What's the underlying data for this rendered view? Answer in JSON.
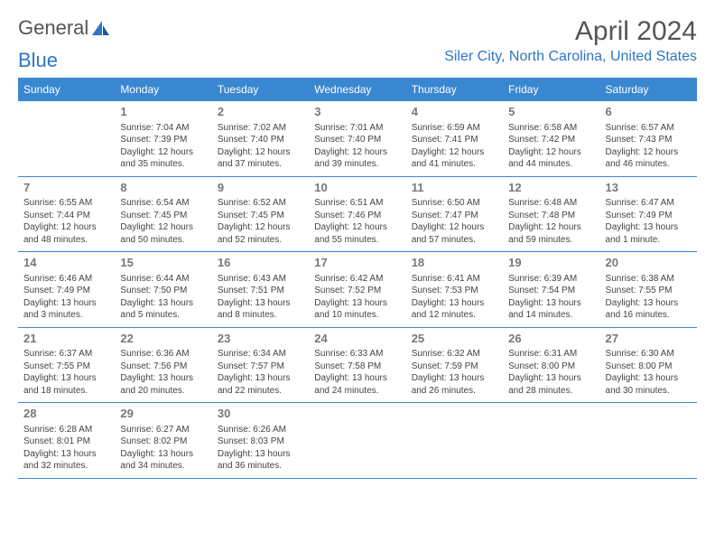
{
  "logo": {
    "part1": "General",
    "part2": "Blue"
  },
  "title": "April 2024",
  "location": "Siler City, North Carolina, United States",
  "day_headers": [
    "Sunday",
    "Monday",
    "Tuesday",
    "Wednesday",
    "Thursday",
    "Friday",
    "Saturday"
  ],
  "colors": {
    "header_bg": "#3a87d1",
    "header_text": "#ffffff",
    "accent": "#2e75c6",
    "text": "#444444",
    "daynum": "#777777"
  },
  "weeks": [
    [
      null,
      {
        "n": "1",
        "sr": "7:04 AM",
        "ss": "7:39 PM",
        "dl": "12 hours and 35 minutes."
      },
      {
        "n": "2",
        "sr": "7:02 AM",
        "ss": "7:40 PM",
        "dl": "12 hours and 37 minutes."
      },
      {
        "n": "3",
        "sr": "7:01 AM",
        "ss": "7:40 PM",
        "dl": "12 hours and 39 minutes."
      },
      {
        "n": "4",
        "sr": "6:59 AM",
        "ss": "7:41 PM",
        "dl": "12 hours and 41 minutes."
      },
      {
        "n": "5",
        "sr": "6:58 AM",
        "ss": "7:42 PM",
        "dl": "12 hours and 44 minutes."
      },
      {
        "n": "6",
        "sr": "6:57 AM",
        "ss": "7:43 PM",
        "dl": "12 hours and 46 minutes."
      }
    ],
    [
      {
        "n": "7",
        "sr": "6:55 AM",
        "ss": "7:44 PM",
        "dl": "12 hours and 48 minutes."
      },
      {
        "n": "8",
        "sr": "6:54 AM",
        "ss": "7:45 PM",
        "dl": "12 hours and 50 minutes."
      },
      {
        "n": "9",
        "sr": "6:52 AM",
        "ss": "7:45 PM",
        "dl": "12 hours and 52 minutes."
      },
      {
        "n": "10",
        "sr": "6:51 AM",
        "ss": "7:46 PM",
        "dl": "12 hours and 55 minutes."
      },
      {
        "n": "11",
        "sr": "6:50 AM",
        "ss": "7:47 PM",
        "dl": "12 hours and 57 minutes."
      },
      {
        "n": "12",
        "sr": "6:48 AM",
        "ss": "7:48 PM",
        "dl": "12 hours and 59 minutes."
      },
      {
        "n": "13",
        "sr": "6:47 AM",
        "ss": "7:49 PM",
        "dl": "13 hours and 1 minute."
      }
    ],
    [
      {
        "n": "14",
        "sr": "6:46 AM",
        "ss": "7:49 PM",
        "dl": "13 hours and 3 minutes."
      },
      {
        "n": "15",
        "sr": "6:44 AM",
        "ss": "7:50 PM",
        "dl": "13 hours and 5 minutes."
      },
      {
        "n": "16",
        "sr": "6:43 AM",
        "ss": "7:51 PM",
        "dl": "13 hours and 8 minutes."
      },
      {
        "n": "17",
        "sr": "6:42 AM",
        "ss": "7:52 PM",
        "dl": "13 hours and 10 minutes."
      },
      {
        "n": "18",
        "sr": "6:41 AM",
        "ss": "7:53 PM",
        "dl": "13 hours and 12 minutes."
      },
      {
        "n": "19",
        "sr": "6:39 AM",
        "ss": "7:54 PM",
        "dl": "13 hours and 14 minutes."
      },
      {
        "n": "20",
        "sr": "6:38 AM",
        "ss": "7:55 PM",
        "dl": "13 hours and 16 minutes."
      }
    ],
    [
      {
        "n": "21",
        "sr": "6:37 AM",
        "ss": "7:55 PM",
        "dl": "13 hours and 18 minutes."
      },
      {
        "n": "22",
        "sr": "6:36 AM",
        "ss": "7:56 PM",
        "dl": "13 hours and 20 minutes."
      },
      {
        "n": "23",
        "sr": "6:34 AM",
        "ss": "7:57 PM",
        "dl": "13 hours and 22 minutes."
      },
      {
        "n": "24",
        "sr": "6:33 AM",
        "ss": "7:58 PM",
        "dl": "13 hours and 24 minutes."
      },
      {
        "n": "25",
        "sr": "6:32 AM",
        "ss": "7:59 PM",
        "dl": "13 hours and 26 minutes."
      },
      {
        "n": "26",
        "sr": "6:31 AM",
        "ss": "8:00 PM",
        "dl": "13 hours and 28 minutes."
      },
      {
        "n": "27",
        "sr": "6:30 AM",
        "ss": "8:00 PM",
        "dl": "13 hours and 30 minutes."
      }
    ],
    [
      {
        "n": "28",
        "sr": "6:28 AM",
        "ss": "8:01 PM",
        "dl": "13 hours and 32 minutes."
      },
      {
        "n": "29",
        "sr": "6:27 AM",
        "ss": "8:02 PM",
        "dl": "13 hours and 34 minutes."
      },
      {
        "n": "30",
        "sr": "6:26 AM",
        "ss": "8:03 PM",
        "dl": "13 hours and 36 minutes."
      },
      null,
      null,
      null,
      null
    ]
  ]
}
